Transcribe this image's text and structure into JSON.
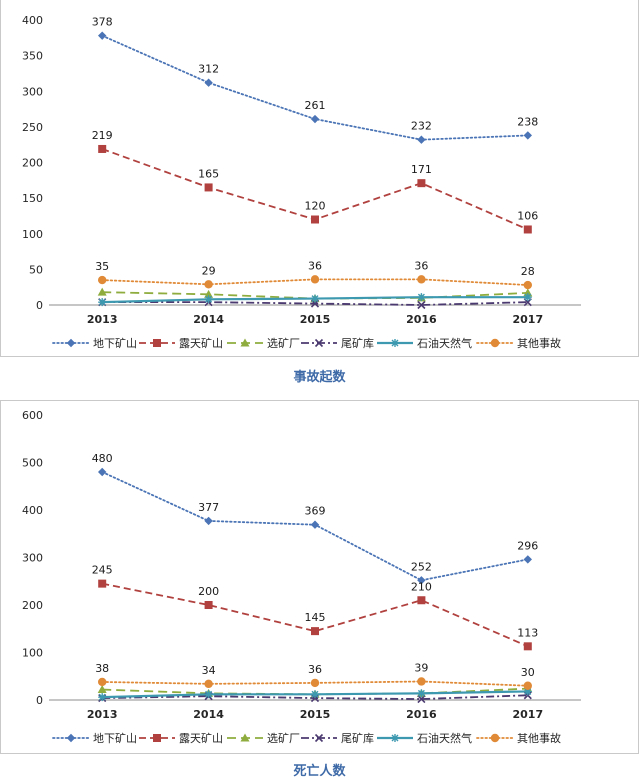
{
  "chart_data": [
    {
      "type": "line",
      "title": "事故起数",
      "x": [
        "2013",
        "2014",
        "2015",
        "2016",
        "2017"
      ],
      "ylim": [
        0,
        400
      ],
      "yticks": [
        0,
        50,
        100,
        150,
        200,
        250,
        300,
        350,
        400
      ],
      "ytick_labels": [
        "0",
        "50",
        "100",
        "150",
        "200",
        "250",
        "300",
        "350",
        "400"
      ],
      "grid": false,
      "legend": "bottom",
      "series": [
        {
          "name": "地下矿山",
          "values": [
            378,
            312,
            261,
            232,
            238
          ],
          "labels": [
            "378",
            "312",
            "261",
            "232",
            "238"
          ],
          "color": "#4a74b5",
          "dash": "dotted",
          "marker": "diamond"
        },
        {
          "name": "露天矿山",
          "values": [
            219,
            165,
            120,
            171,
            106
          ],
          "labels": [
            "219",
            "165",
            "120",
            "171",
            "106"
          ],
          "color": "#b0413e",
          "dash": "dashed",
          "marker": "square"
        },
        {
          "name": "选矿厂",
          "values": [
            18,
            15,
            9,
            10,
            17
          ],
          "labels": [],
          "color": "#8fad3f",
          "dash": "longdash",
          "marker": "triangle"
        },
        {
          "name": "尾矿库",
          "values": [
            4,
            4,
            2,
            0,
            4
          ],
          "labels": [],
          "color": "#4b3a70",
          "dash": "dashdot",
          "marker": "x"
        },
        {
          "name": "石油天然气",
          "values": [
            4,
            8,
            9,
            11,
            11
          ],
          "labels": [],
          "color": "#3d99b0",
          "dash": "solid",
          "marker": "star"
        },
        {
          "name": "其他事故",
          "values": [
            35,
            29,
            36,
            36,
            28
          ],
          "labels": [
            "35",
            "29",
            "36",
            "36",
            "28"
          ],
          "color": "#e08a37",
          "dash": "dotted",
          "marker": "circle"
        }
      ]
    },
    {
      "type": "line",
      "title": "死亡人数",
      "x": [
        "2013",
        "2014",
        "2015",
        "2016",
        "2017"
      ],
      "ylim": [
        0,
        600
      ],
      "yticks": [
        0,
        100,
        200,
        300,
        400,
        500,
        600
      ],
      "ytick_labels": [
        "0",
        "100",
        "200",
        "300",
        "400",
        "500",
        "600"
      ],
      "grid": false,
      "legend": "bottom",
      "series": [
        {
          "name": "地下矿山",
          "values": [
            480,
            377,
            369,
            252,
            296
          ],
          "labels": [
            "480",
            "377",
            "369",
            "252",
            "296"
          ],
          "color": "#4a74b5",
          "dash": "dotted",
          "marker": "diamond"
        },
        {
          "name": "露天矿山",
          "values": [
            245,
            200,
            145,
            210,
            113
          ],
          "labels": [
            "245",
            "200",
            "145",
            "210",
            "113"
          ],
          "color": "#b0413e",
          "dash": "dashed",
          "marker": "square"
        },
        {
          "name": "选矿厂",
          "values": [
            22,
            14,
            12,
            14,
            24
          ],
          "labels": [],
          "color": "#8fad3f",
          "dash": "longdash",
          "marker": "triangle"
        },
        {
          "name": "尾矿库",
          "values": [
            4,
            8,
            4,
            2,
            10
          ],
          "labels": [],
          "color": "#4b3a70",
          "dash": "dashdot",
          "marker": "x"
        },
        {
          "name": "石油天然气",
          "values": [
            6,
            12,
            12,
            14,
            18
          ],
          "labels": [],
          "color": "#3d99b0",
          "dash": "solid",
          "marker": "star"
        },
        {
          "name": "其他事故",
          "values": [
            38,
            34,
            36,
            39,
            30
          ],
          "labels": [
            "38",
            "34",
            "36",
            "39",
            "30"
          ],
          "color": "#e08a37",
          "dash": "dotted",
          "marker": "circle"
        }
      ]
    }
  ]
}
